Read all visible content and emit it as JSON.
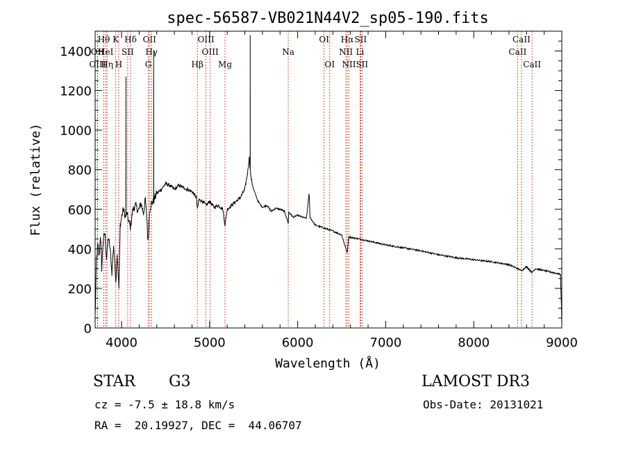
{
  "chart_data": {
    "type": "line",
    "title": "spec-56587-VB021N44V2_sp05-190.fits",
    "xlabel": "Wavelength (Å)",
    "ylabel": "Flux (relative)",
    "xlim": [
      3700,
      9000
    ],
    "ylim": [
      0,
      1500
    ],
    "x_ticks": [
      4000,
      5000,
      6000,
      7000,
      8000,
      9000
    ],
    "y_ticks": [
      0,
      200,
      400,
      600,
      800,
      1000,
      1200,
      1400
    ],
    "series": [
      {
        "name": "flux",
        "points": [
          [
            3700,
            60
          ],
          [
            3715,
            340
          ],
          [
            3730,
            420
          ],
          [
            3745,
            360
          ],
          [
            3760,
            470
          ],
          [
            3775,
            300
          ],
          [
            3790,
            440
          ],
          [
            3810,
            480
          ],
          [
            3830,
            350
          ],
          [
            3850,
            460
          ],
          [
            3870,
            400
          ],
          [
            3890,
            280
          ],
          [
            3910,
            420
          ],
          [
            3935,
            240
          ],
          [
            3950,
            380
          ],
          [
            3970,
            200
          ],
          [
            3985,
            520
          ],
          [
            4000,
            560
          ],
          [
            4020,
            600
          ],
          [
            4045,
            560
          ],
          [
            4060,
            580
          ],
          [
            4080,
            540
          ],
          [
            4100,
            510
          ],
          [
            4130,
            600
          ],
          [
            4160,
            620
          ],
          [
            4190,
            590
          ],
          [
            4220,
            630
          ],
          [
            4250,
            580
          ],
          [
            4270,
            650
          ],
          [
            4290,
            540
          ],
          [
            4300,
            430
          ],
          [
            4320,
            600
          ],
          [
            4340,
            630
          ],
          [
            4360,
            640
          ],
          [
            4380,
            660
          ],
          [
            4400,
            680
          ],
          [
            4450,
            700
          ],
          [
            4500,
            730
          ],
          [
            4550,
            720
          ],
          [
            4600,
            700
          ],
          [
            4650,
            720
          ],
          [
            4700,
            710
          ],
          [
            4750,
            700
          ],
          [
            4800,
            690
          ],
          [
            4850,
            660
          ],
          [
            4861,
            600
          ],
          [
            4880,
            650
          ],
          [
            4920,
            640
          ],
          [
            4960,
            620
          ],
          [
            5000,
            640
          ],
          [
            5050,
            610
          ],
          [
            5100,
            620
          ],
          [
            5150,
            600
          ],
          [
            5175,
            520
          ],
          [
            5200,
            600
          ],
          [
            5250,
            620
          ],
          [
            5300,
            640
          ],
          [
            5350,
            660
          ],
          [
            5400,
            700
          ],
          [
            5430,
            780
          ],
          [
            5450,
            860
          ],
          [
            5470,
            760
          ],
          [
            5500,
            700
          ],
          [
            5550,
            640
          ],
          [
            5600,
            610
          ],
          [
            5650,
            620
          ],
          [
            5700,
            590
          ],
          [
            5750,
            605
          ],
          [
            5800,
            600
          ],
          [
            5850,
            590
          ],
          [
            5893,
            530
          ],
          [
            5900,
            585
          ],
          [
            5950,
            560
          ],
          [
            6000,
            570
          ],
          [
            6050,
            560
          ],
          [
            6100,
            555
          ],
          [
            6130,
            680
          ],
          [
            6140,
            560
          ],
          [
            6200,
            520
          ],
          [
            6300,
            505
          ],
          [
            6400,
            490
          ],
          [
            6500,
            470
          ],
          [
            6563,
            380
          ],
          [
            6580,
            460
          ],
          [
            6700,
            450
          ],
          [
            6800,
            440
          ],
          [
            6900,
            430
          ],
          [
            7000,
            420
          ],
          [
            7200,
            405
          ],
          [
            7400,
            390
          ],
          [
            7600,
            370
          ],
          [
            7800,
            355
          ],
          [
            8000,
            345
          ],
          [
            8200,
            335
          ],
          [
            8400,
            320
          ],
          [
            8498,
            300
          ],
          [
            8542,
            290
          ],
          [
            8600,
            310
          ],
          [
            8662,
            280
          ],
          [
            8700,
            300
          ],
          [
            8800,
            290
          ],
          [
            8900,
            280
          ],
          [
            8950,
            275
          ],
          [
            8985,
            270
          ],
          [
            8995,
            120
          ],
          [
            9000,
            20
          ]
        ],
        "spikes": [
          {
            "x": 4050,
            "y": 1270
          },
          {
            "x": 4365,
            "y": 1400
          },
          {
            "x": 5461,
            "y": 1480
          }
        ]
      }
    ],
    "line_markers": [
      {
        "label": "Hθ",
        "x": 3798,
        "row": 1
      },
      {
        "label": "OII",
        "x": 3727,
        "row": 2
      },
      {
        "label": "OIII",
        "x": 3727,
        "row": 3
      },
      {
        "label": "HeI",
        "x": 3820,
        "row": 2
      },
      {
        "label": "Hη",
        "x": 3835,
        "row": 3
      },
      {
        "label": "K",
        "x": 3934,
        "row": 1
      },
      {
        "label": "SII",
        "x": 4070,
        "row": 2
      },
      {
        "label": "H",
        "x": 3968,
        "row": 3
      },
      {
        "label": "Hδ",
        "x": 4102,
        "row": 1
      },
      {
        "label": "OII",
        "x": 4317,
        "row": 1
      },
      {
        "label": "Hγ",
        "x": 4340,
        "row": 2
      },
      {
        "label": "G",
        "x": 4304,
        "row": 3
      },
      {
        "label": "OIII",
        "x": 4959,
        "row": 1
      },
      {
        "label": "OIII",
        "x": 5007,
        "row": 2
      },
      {
        "label": "Hβ",
        "x": 4861,
        "row": 3
      },
      {
        "label": "Mg",
        "x": 5175,
        "row": 3
      },
      {
        "label": "Na",
        "x": 5893,
        "row": 2
      },
      {
        "label": "OI",
        "x": 6300,
        "row": 1
      },
      {
        "label": "OI",
        "x": 6364,
        "row": 3
      },
      {
        "label": "Hα",
        "x": 6563,
        "row": 1
      },
      {
        "label": "SII",
        "x": 6716,
        "row": 1
      },
      {
        "label": "NII",
        "x": 6548,
        "row": 2
      },
      {
        "label": "Li",
        "x": 6708,
        "row": 2
      },
      {
        "label": "NII",
        "x": 6583,
        "row": 3
      },
      {
        "label": "SII",
        "x": 6731,
        "row": 3
      },
      {
        "label": "CaII",
        "x": 8542,
        "row": 1
      },
      {
        "label": "CaII",
        "x": 8498,
        "row": 2
      },
      {
        "label": "CaII",
        "x": 8662,
        "row": 3
      }
    ],
    "grid": false,
    "legend": "none"
  },
  "info": {
    "class": "STAR",
    "subclass": "G3",
    "survey": "LAMOST DR3",
    "redshift": "cz = -7.5 ± 18.8 km/s",
    "obs_date": "Obs-Date: 20131021",
    "coords": "RA =  20.19927, DEC =  44.06707"
  },
  "colors": {
    "spectrum": "#000000",
    "marker_line": "#cc2200",
    "axis": "#000000"
  }
}
